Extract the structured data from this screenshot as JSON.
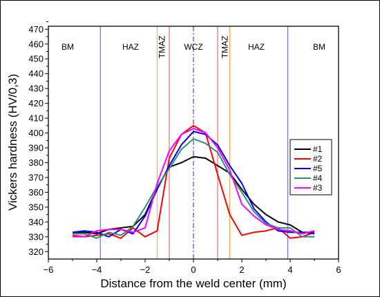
{
  "chart_data": {
    "type": "line",
    "xlabel": "Distance from the weld center (mm)",
    "ylabel": "Vickers hardness (HV/0,3)",
    "xlim": [
      -6,
      6
    ],
    "ylim": [
      315,
      472
    ],
    "xticks": [
      -6,
      -4,
      -2,
      0,
      2,
      4,
      6
    ],
    "yticks": [
      320,
      330,
      340,
      350,
      360,
      370,
      380,
      390,
      400,
      410,
      420,
      430,
      440,
      450,
      460,
      470
    ],
    "grid": false,
    "legend_position": "right",
    "regions": [
      {
        "label": "BM",
        "x": -5.2,
        "vertical": false
      },
      {
        "label": "HAZ",
        "x": -2.6,
        "vertical": false
      },
      {
        "label": "TMAZ",
        "x": -1.3,
        "vertical": true
      },
      {
        "label": "WCZ",
        "x": 0,
        "vertical": false
      },
      {
        "label": "TMAZ",
        "x": 1.3,
        "vertical": true
      },
      {
        "label": "HAZ",
        "x": 2.6,
        "vertical": false
      },
      {
        "label": "BM",
        "x": 5.2,
        "vertical": false
      }
    ],
    "boundaries": [
      {
        "x": -3.85,
        "color": "#6b6bff",
        "style": "solid"
      },
      {
        "x": -1.5,
        "color": "#ffa64d",
        "style": "solid"
      },
      {
        "x": -1.0,
        "color": "#ff6b6b",
        "style": "solid"
      },
      {
        "x": 0,
        "color": "#4444dd",
        "style": "dashdot"
      },
      {
        "x": 1.0,
        "color": "#ff6b6b",
        "style": "solid"
      },
      {
        "x": 1.5,
        "color": "#ffa64d",
        "style": "solid"
      },
      {
        "x": 3.9,
        "color": "#6b6bff",
        "style": "solid"
      }
    ],
    "series": [
      {
        "name": "#1",
        "color": "#000000",
        "x": [
          -5,
          -4.5,
          -4,
          -3.5,
          -3,
          -2.5,
          -2,
          -1.5,
          -1,
          -0.5,
          0,
          0.5,
          1,
          1.5,
          2,
          2.5,
          3,
          3.5,
          4,
          4.5,
          5
        ],
        "y": [
          333,
          333,
          332,
          335,
          336,
          337,
          345,
          363,
          377,
          380,
          384,
          383,
          378,
          373,
          362,
          352,
          345,
          340,
          338,
          333,
          333
        ]
      },
      {
        "name": "#2",
        "color": "#ff0000",
        "x": [
          -5,
          -4.5,
          -4,
          -3.5,
          -3,
          -2.5,
          -2,
          -1.5,
          -1,
          -0.5,
          0,
          0.5,
          1,
          1.5,
          2,
          2.5,
          3,
          3.5,
          4,
          4.5,
          5
        ],
        "y": [
          331,
          330,
          331,
          332,
          329,
          336,
          330,
          334,
          383,
          399,
          405,
          400,
          372,
          345,
          331,
          333,
          334,
          336,
          329,
          330,
          333
        ]
      },
      {
        "name": "#5",
        "color": "#0000ee",
        "x": [
          -5,
          -4.5,
          -4,
          -3.5,
          -3,
          -2.5,
          -2,
          -1.5,
          -1,
          -0.5,
          0,
          0.5,
          1,
          1.5,
          2,
          2.5,
          3,
          3.5,
          4,
          4.5,
          5
        ],
        "y": [
          333,
          334,
          333,
          330,
          335,
          332,
          344,
          362,
          378,
          392,
          401,
          399,
          392,
          378,
          366,
          349,
          340,
          334,
          333,
          333,
          332
        ]
      },
      {
        "name": "#4",
        "color": "#2a8c84",
        "x": [
          -5,
          -4.5,
          -4,
          -3.5,
          -3,
          -2.5,
          -2,
          -1.5,
          -1,
          -0.5,
          0,
          0.5,
          1,
          1.5,
          2,
          2.5,
          3,
          3.5,
          4,
          4.5,
          5
        ],
        "y": [
          332,
          332,
          329,
          333,
          331,
          337,
          350,
          364,
          376,
          389,
          396,
          393,
          387,
          372,
          360,
          347,
          339,
          336,
          336,
          330,
          330
        ]
      },
      {
        "name": "#3",
        "color": "#ff00ff",
        "x": [
          -5,
          -4.5,
          -4,
          -3.5,
          -3,
          -2.5,
          -2,
          -1.5,
          -1,
          -0.5,
          0,
          0.5,
          1,
          1.5,
          2,
          2.5,
          3,
          3.5,
          4,
          4.5,
          5
        ],
        "y": [
          330,
          330,
          334,
          335,
          335,
          333,
          336,
          366,
          388,
          399,
          403,
          400,
          390,
          375,
          352,
          344,
          338,
          335,
          334,
          332,
          334
        ]
      }
    ]
  }
}
